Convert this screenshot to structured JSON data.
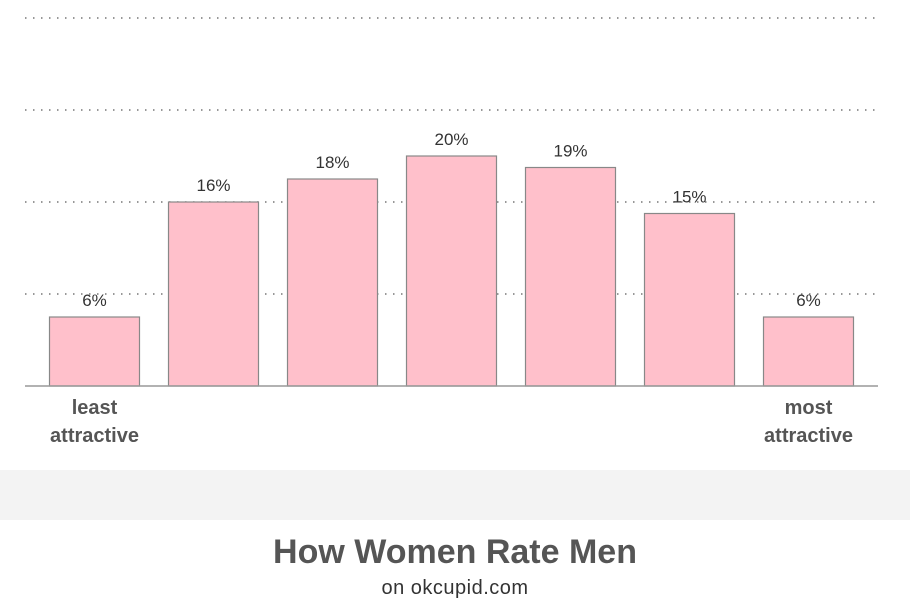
{
  "chart_data": {
    "type": "bar",
    "categories": [
      "least attractive",
      "",
      "",
      "",
      "",
      "",
      "most attractive"
    ],
    "category_label_lines": [
      [
        "least",
        "attractive"
      ],
      [],
      [],
      [],
      [],
      [],
      [
        "most",
        "attractive"
      ]
    ],
    "values": [
      6,
      16,
      18,
      20,
      19,
      15,
      6
    ],
    "data_labels": [
      "6%",
      "16%",
      "18%",
      "20%",
      "19%",
      "15%",
      "6%"
    ],
    "ylim": [
      0,
      32
    ],
    "y_gridlines": [
      8,
      16,
      24,
      32
    ],
    "grid": true,
    "grid_style": "dotted",
    "title": "How Women Rate Men",
    "subtitle": "on okcupid.com",
    "xlabel": "",
    "ylabel": "",
    "bar_color": "#ffc0cb",
    "bar_edge_color": "#888888"
  }
}
